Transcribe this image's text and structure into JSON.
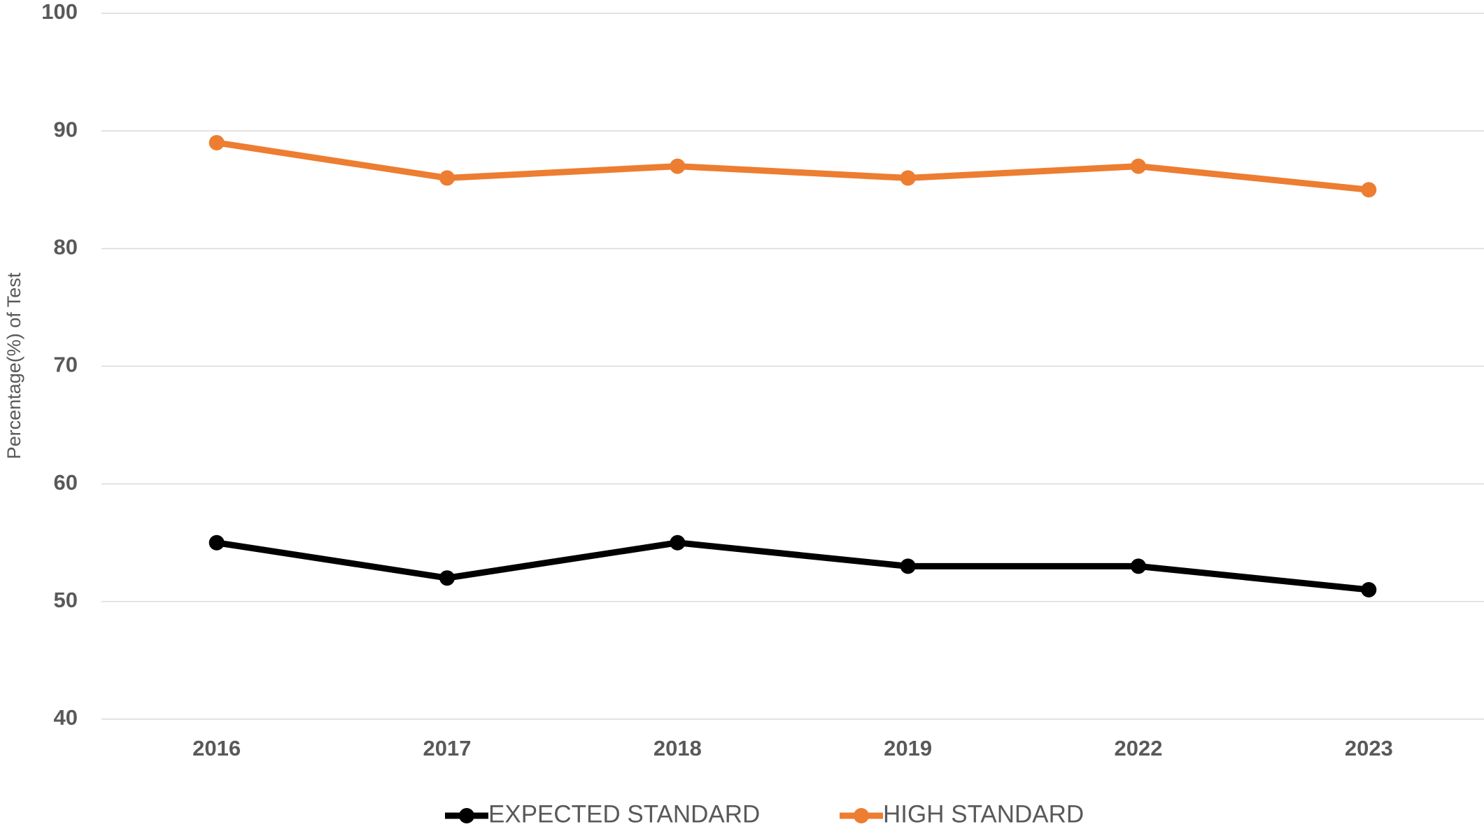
{
  "chart_data": {
    "type": "line",
    "ylabel": "Percentage(%) of Test",
    "categories": [
      "2016",
      "2017",
      "2018",
      "2019",
      "2022",
      "2023"
    ],
    "series": [
      {
        "name": "EXPECTED STANDARD",
        "color": "#000000",
        "values": [
          55,
          52,
          55,
          53,
          53,
          51
        ]
      },
      {
        "name": "HIGH STANDARD",
        "color": "#ed7d31",
        "values": [
          89,
          86,
          87,
          86,
          87,
          85
        ]
      }
    ],
    "ylim": [
      40,
      100
    ],
    "yticks": [
      40,
      50,
      60,
      70,
      80,
      90,
      100
    ],
    "grid": true,
    "legend": "bottom"
  }
}
